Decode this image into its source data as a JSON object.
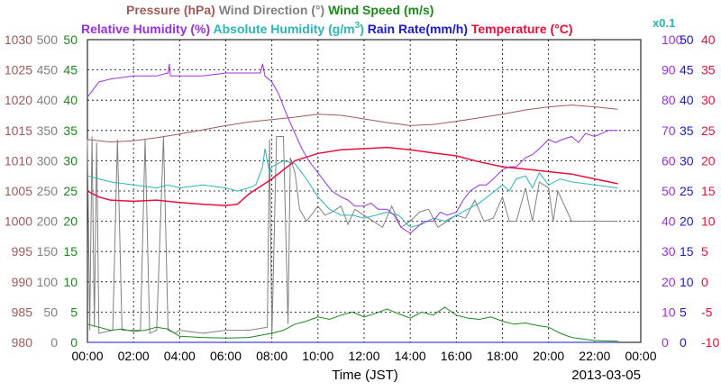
{
  "chart_data": {
    "type": "line",
    "date_label": "2013-03-05",
    "xlabel": "Time (JST)",
    "x_ticks": [
      "00:00",
      "02:00",
      "04:00",
      "06:00",
      "08:00",
      "10:00",
      "12:00",
      "14:00",
      "16:00",
      "18:00",
      "20:00",
      "22:00",
      "00:00"
    ],
    "grid": true,
    "legend_placement": "top",
    "legend_row1": [
      {
        "name": "Pressure (hPa)",
        "color": "#a05a5a"
      },
      {
        "name": "Wind Direction (°)",
        "color": "#808080"
      },
      {
        "name": "Wind Speed (m/s)",
        "color": "#1a8a1a"
      }
    ],
    "legend_row2": [
      {
        "name": "Relative Humidity (%)",
        "color": "#9b30e0"
      },
      {
        "name": "Absolute Humidity (g/m",
        "sup": "3",
        "close": ")",
        "color": "#2bb5b5"
      },
      {
        "name": "Rain Rate(mm/h)",
        "color": "#1a1ad0"
      },
      {
        "name": "Temperature (°C)",
        "color": "#e8103a"
      }
    ],
    "multiplier_label": "x0.1",
    "axes": {
      "pressure": {
        "color": "#a05a5a",
        "min": 980,
        "max": 1030,
        "ticks": [
          "1030",
          "1025",
          "1020",
          "1015",
          "1010",
          "1005",
          "1000",
          "995",
          "990",
          "985",
          "980"
        ]
      },
      "wind_direction": {
        "color": "#808080",
        "min": 0,
        "max": 500,
        "ticks": [
          "500",
          "450",
          "400",
          "350",
          "300",
          "250",
          "200",
          "150",
          "100",
          "50",
          "0"
        ]
      },
      "wind_speed": {
        "color": "#1a8a1a",
        "min": 0,
        "max": 50,
        "ticks": [
          "50",
          "45",
          "40",
          "35",
          "30",
          "25",
          "20",
          "15",
          "10",
          "5",
          "0"
        ]
      },
      "relative_humidity": {
        "color": "#9b30e0",
        "min": 0,
        "max": 100,
        "ticks": [
          "100",
          "90",
          "80",
          "70",
          "60",
          "50",
          "40",
          "30",
          "20",
          "10",
          "0"
        ]
      },
      "rain_rate": {
        "color": "#1a1ad0",
        "min": 0,
        "max": 50,
        "ticks": [
          "50",
          "45",
          "40",
          "35",
          "30",
          "25",
          "20",
          "15",
          "10",
          "5",
          "0"
        ]
      },
      "temperature": {
        "color": "#e8103a",
        "min": -10,
        "max": 40,
        "ticks": [
          "40",
          "35",
          "30",
          "25",
          "20",
          "15",
          "10",
          "5",
          "0",
          "-5",
          "-10"
        ]
      }
    },
    "series": [
      {
        "name": "Pressure (hPa)",
        "axis": "pressure",
        "color": "#a05a5a",
        "x_hours": [
          0,
          1,
          2,
          3,
          4,
          5,
          6,
          7,
          8,
          9,
          10,
          11,
          12,
          13,
          14,
          15,
          16,
          17,
          18,
          19,
          20,
          21,
          22,
          23
        ],
        "values": [
          1013.5,
          1013.1,
          1013.3,
          1013.8,
          1014.4,
          1015.1,
          1015.8,
          1016.4,
          1016.8,
          1017.2,
          1017.7,
          1017.5,
          1016.9,
          1016.3,
          1015.8,
          1016.0,
          1016.5,
          1017.1,
          1017.7,
          1018.4,
          1018.9,
          1019.2,
          1018.9,
          1018.5
        ]
      },
      {
        "name": "Wind Direction (°)",
        "axis": "wind_direction",
        "color": "#808080",
        "x_hours": [
          0,
          0.1,
          0.2,
          0.3,
          0.4,
          0.5,
          1.1,
          1.3,
          1.5,
          1.6,
          2.3,
          2.5,
          2.7,
          3.0,
          3.3,
          3.5,
          3.8,
          4.0,
          5.0,
          6.0,
          7.0,
          7.8,
          7.9,
          8.0,
          8.2,
          8.5,
          8.7,
          8.8,
          9.0,
          9.2,
          9.5,
          9.7,
          10.0,
          10.3,
          10.6,
          11.0,
          11.3,
          11.6,
          12.0,
          12.4,
          12.8,
          13.2,
          13.6,
          14.0,
          14.4,
          14.8,
          15.2,
          15.6,
          16.0,
          16.4,
          16.8,
          17.2,
          17.6,
          18.0,
          18.3,
          18.6,
          19.0,
          19.3,
          19.6,
          20.0,
          20.2,
          20.4,
          21.0,
          22.0,
          23.0
        ],
        "values": [
          335,
          20,
          340,
          25,
          330,
          15,
          20,
          335,
          20,
          20,
          20,
          335,
          15,
          20,
          340,
          20,
          15,
          20,
          15,
          20,
          20,
          25,
          335,
          10,
          340,
          340,
          30,
          305,
          280,
          220,
          200,
          210,
          225,
          210,
          215,
          225,
          195,
          220,
          210,
          200,
          190,
          225,
          190,
          200,
          215,
          220,
          190,
          200,
          210,
          205,
          235,
          200,
          205,
          240,
          200,
          200,
          255,
          200,
          265,
          255,
          200,
          250,
          200,
          200,
          200
        ]
      },
      {
        "name": "Wind Speed (m/s)",
        "axis": "wind_speed",
        "color": "#1a8a1a",
        "x_hours": [
          0,
          0.5,
          1,
          1.5,
          2,
          2.5,
          3,
          3.5,
          4,
          5,
          6,
          7,
          8,
          8.5,
          9,
          9.5,
          10,
          10.5,
          11,
          11.5,
          12,
          12.5,
          13,
          13.5,
          14,
          14.5,
          15,
          15.5,
          16,
          16.5,
          17,
          17.5,
          18,
          18.5,
          19,
          19.5,
          20,
          20.5,
          21,
          22,
          23
        ],
        "values": [
          3,
          2.5,
          2,
          2.2,
          1.8,
          2,
          2.5,
          2.2,
          1,
          0.8,
          0.7,
          0.8,
          1.5,
          2,
          3,
          3.5,
          4.2,
          3.8,
          4.5,
          5,
          4.2,
          4.8,
          5.5,
          4.7,
          4,
          5,
          4.5,
          5.8,
          4.5,
          4,
          3.8,
          4.2,
          3.5,
          3,
          3.2,
          2.8,
          2.5,
          1.5,
          0.8,
          0.3,
          0.2
        ]
      },
      {
        "name": "Relative Humidity (%)",
        "axis": "relative_humidity",
        "color": "#9b30e0",
        "x_hours": [
          0,
          0.5,
          1,
          2,
          3,
          3.5,
          3.55,
          3.6,
          4,
          5,
          6,
          7,
          7.5,
          7.6,
          7.7,
          8,
          8.3,
          8.6,
          9,
          9.3,
          9.6,
          10,
          10.3,
          10.6,
          11,
          11.3,
          11.6,
          12,
          12.3,
          12.6,
          13,
          13.3,
          13.6,
          14,
          14.3,
          14.6,
          15,
          15.3,
          15.6,
          16,
          16.3,
          16.6,
          17,
          17.3,
          17.6,
          18,
          18.3,
          18.6,
          19,
          19.3,
          19.6,
          20,
          20.3,
          20.6,
          21,
          21.3,
          21.6,
          22,
          22.3,
          22.6,
          23
        ],
        "values": [
          81,
          86,
          87,
          88,
          88,
          89,
          92,
          88,
          88,
          88,
          89,
          89,
          89,
          92,
          88,
          86,
          82,
          76,
          69,
          64,
          60,
          56,
          53,
          50,
          48,
          47,
          45,
          45,
          46,
          44,
          44,
          42,
          38,
          36,
          38,
          40,
          40,
          43,
          42,
          43,
          47,
          50,
          52,
          52,
          54,
          57,
          58,
          58,
          61,
          62,
          64,
          67,
          66,
          67,
          68,
          66,
          69,
          68,
          69,
          70,
          70
        ]
      },
      {
        "name": "Absolute Humidity (g/m3)",
        "axis": "wind_speed",
        "color": "#2bb5b5",
        "x_hours": [
          0,
          0.5,
          1,
          2,
          3,
          3.5,
          4,
          5,
          6,
          6.5,
          7,
          7.3,
          7.6,
          7.7,
          7.9,
          8,
          8.5,
          9,
          9.5,
          10,
          10.5,
          11,
          11.5,
          12,
          12.5,
          13,
          13.5,
          14,
          14.5,
          15,
          15.5,
          16,
          16.5,
          17,
          17.5,
          18,
          18.3,
          18.6,
          19,
          19.3,
          19.6,
          20,
          20.5,
          21,
          22,
          23
        ],
        "values": [
          27.5,
          27,
          26.5,
          26,
          25.5,
          26,
          25.5,
          26,
          25.5,
          25,
          25.5,
          26,
          29,
          32,
          28,
          29,
          30,
          29.5,
          27,
          24,
          22,
          21,
          21,
          20.5,
          21,
          21.5,
          21,
          19,
          19.5,
          20.5,
          20,
          21,
          22,
          23,
          24.5,
          26,
          25,
          27,
          27.5,
          25.5,
          28,
          26,
          27,
          26.5,
          26,
          25.5
        ]
      },
      {
        "name": "Rain Rate(mm/h)",
        "axis": "rain_rate",
        "color": "#1a1ad0",
        "x_hours": [
          0,
          11,
          12,
          13,
          13.6,
          14,
          14.3,
          14.6,
          15,
          15.3,
          15.6,
          16,
          23
        ],
        "values": [
          0,
          0,
          0,
          0,
          0,
          0,
          0,
          0,
          0,
          0,
          0,
          0,
          0
        ]
      },
      {
        "name": "Temperature (°C)",
        "axis": "temperature",
        "color": "#e8103a",
        "x_hours": [
          0,
          0.5,
          1,
          2,
          3,
          4,
          5,
          6,
          6.5,
          7,
          8,
          9,
          10,
          11,
          12,
          13,
          14,
          15,
          16,
          17,
          18,
          19,
          20,
          21,
          22,
          23
        ],
        "values": [
          15,
          14,
          13.5,
          13.3,
          13.5,
          13.1,
          12.8,
          12.6,
          12.8,
          14.5,
          17,
          20,
          21.2,
          21.8,
          22,
          22.2,
          21.8,
          21.3,
          20.8,
          19.8,
          19,
          18.6,
          18.2,
          17.8,
          17,
          16.2
        ]
      }
    ]
  }
}
